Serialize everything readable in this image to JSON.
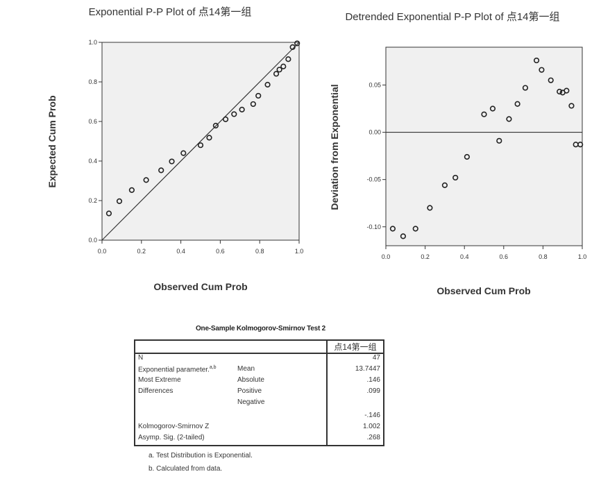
{
  "chart_data": [
    {
      "type": "scatter",
      "title": "Exponential P-P Plot of 点14第一组",
      "xlabel": "Observed Cum Prob",
      "ylabel": "Expected Cum Prob",
      "xlim": [
        0,
        1
      ],
      "ylim": [
        0,
        1
      ],
      "xticks": [
        "0.0",
        "0.2",
        "0.4",
        "0.6",
        "0.8",
        "1.0"
      ],
      "yticks": [
        "0.0",
        "0.2",
        "0.4",
        "0.6",
        "0.8",
        "1.0"
      ],
      "reference_line": "y = x",
      "points": [
        {
          "x": 0.035,
          "y": 0.135
        },
        {
          "x": 0.088,
          "y": 0.197
        },
        {
          "x": 0.151,
          "y": 0.253
        },
        {
          "x": 0.224,
          "y": 0.304
        },
        {
          "x": 0.3,
          "y": 0.353
        },
        {
          "x": 0.354,
          "y": 0.398
        },
        {
          "x": 0.413,
          "y": 0.44
        },
        {
          "x": 0.5,
          "y": 0.48
        },
        {
          "x": 0.544,
          "y": 0.518
        },
        {
          "x": 0.577,
          "y": 0.579
        },
        {
          "x": 0.627,
          "y": 0.611
        },
        {
          "x": 0.67,
          "y": 0.637
        },
        {
          "x": 0.71,
          "y": 0.66
        },
        {
          "x": 0.767,
          "y": 0.688
        },
        {
          "x": 0.793,
          "y": 0.73
        },
        {
          "x": 0.84,
          "y": 0.786
        },
        {
          "x": 0.884,
          "y": 0.841
        },
        {
          "x": 0.9,
          "y": 0.862
        },
        {
          "x": 0.92,
          "y": 0.878
        },
        {
          "x": 0.945,
          "y": 0.915
        },
        {
          "x": 0.967,
          "y": 0.976
        },
        {
          "x": 0.99,
          "y": 0.995
        }
      ]
    },
    {
      "type": "scatter",
      "title": "Detrended Exponential P-P Plot of 点14第一组",
      "xlabel": "Observed Cum Prob",
      "ylabel": "Deviation from Exponential",
      "xlim": [
        0,
        1
      ],
      "ylim": [
        -0.12,
        0.09
      ],
      "xticks": [
        "0.0",
        "0.2",
        "0.4",
        "0.6",
        "0.8",
        "1.0"
      ],
      "yticks": [
        "-0.10",
        "-0.05",
        "0.00",
        "0.05"
      ],
      "reference_line": "y = 0",
      "points": [
        {
          "x": 0.035,
          "y": -0.102
        },
        {
          "x": 0.088,
          "y": -0.11
        },
        {
          "x": 0.151,
          "y": -0.102
        },
        {
          "x": 0.224,
          "y": -0.08
        },
        {
          "x": 0.3,
          "y": -0.056
        },
        {
          "x": 0.354,
          "y": -0.048
        },
        {
          "x": 0.413,
          "y": -0.026
        },
        {
          "x": 0.5,
          "y": 0.019
        },
        {
          "x": 0.544,
          "y": 0.025
        },
        {
          "x": 0.577,
          "y": -0.009
        },
        {
          "x": 0.627,
          "y": 0.014
        },
        {
          "x": 0.67,
          "y": 0.03
        },
        {
          "x": 0.71,
          "y": 0.047
        },
        {
          "x": 0.767,
          "y": 0.076
        },
        {
          "x": 0.793,
          "y": 0.066
        },
        {
          "x": 0.84,
          "y": 0.055
        },
        {
          "x": 0.884,
          "y": 0.043
        },
        {
          "x": 0.9,
          "y": 0.042
        },
        {
          "x": 0.92,
          "y": 0.044
        },
        {
          "x": 0.945,
          "y": 0.028
        },
        {
          "x": 0.967,
          "y": -0.013
        },
        {
          "x": 0.99,
          "y": -0.013
        }
      ]
    }
  ],
  "ks_test": {
    "title": "One-Sample Kolmogorov-Smirnov Test 2",
    "column_header": "点14第一组",
    "rows": [
      {
        "label": "N",
        "sublabel": "",
        "value": "47"
      },
      {
        "label": "Exponential parameter.",
        "label_sup": "a,b",
        "sublabel": "Mean",
        "value": "13.7447"
      },
      {
        "label": "Most Extreme",
        "sublabel": "Absolute",
        "value": ".146"
      },
      {
        "label": "Differences",
        "sublabel": "Positive",
        "value": ".099"
      },
      {
        "label": "",
        "sublabel": "Negative",
        "value": "-.146"
      },
      {
        "label": "Kolmogorov-Smirnov Z",
        "sublabel": "",
        "value": "1.002"
      },
      {
        "label": "Asymp. Sig. (2-tailed)",
        "sublabel": "",
        "value": ".268"
      }
    ],
    "footnotes": [
      {
        "mark": "a.",
        "text": "Test Distribution is Exponential."
      },
      {
        "mark": "b.",
        "text": "Calculated from data."
      }
    ]
  }
}
